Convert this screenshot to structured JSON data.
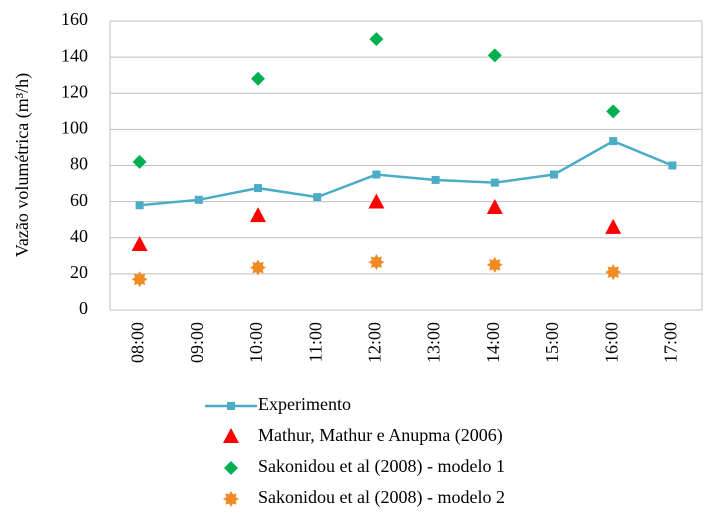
{
  "chart_data": {
    "type": "line",
    "ylabel": "Vazão volumétrica (m³/h)",
    "categories": [
      "08:00",
      "09:00",
      "10:00",
      "11:00",
      "12:00",
      "13:00",
      "14:00",
      "15:00",
      "16:00",
      "17:00"
    ],
    "series": [
      {
        "name": "Experimento",
        "color": "#4bacc6",
        "marker": "square",
        "line": true,
        "values": [
          58,
          61,
          67.5,
          62.5,
          75,
          72,
          70.5,
          75,
          93.5,
          80
        ]
      },
      {
        "name": "Mathur, Mathur e Anupma (2006)",
        "color": "#ff0000",
        "marker": "triangle",
        "line": false,
        "values": [
          36,
          null,
          52,
          null,
          59.5,
          null,
          56.5,
          null,
          45.5,
          null
        ]
      },
      {
        "name": "Sakonidou et al (2008) - modelo 1",
        "color": "#00b050",
        "marker": "diamond",
        "line": false,
        "values": [
          82,
          null,
          128,
          null,
          150,
          null,
          141,
          null,
          110,
          null
        ]
      },
      {
        "name": "Sakonidou et al (2008) - modelo 2",
        "color": "#f08a24",
        "marker": "star",
        "line": false,
        "values": [
          17,
          null,
          23.5,
          null,
          26.5,
          null,
          25,
          null,
          21,
          null
        ]
      }
    ],
    "ylim": [
      0,
      160
    ],
    "yticks": [
      0,
      20,
      40,
      60,
      80,
      100,
      120,
      140,
      160
    ],
    "grid": true,
    "legend": "bottom"
  }
}
